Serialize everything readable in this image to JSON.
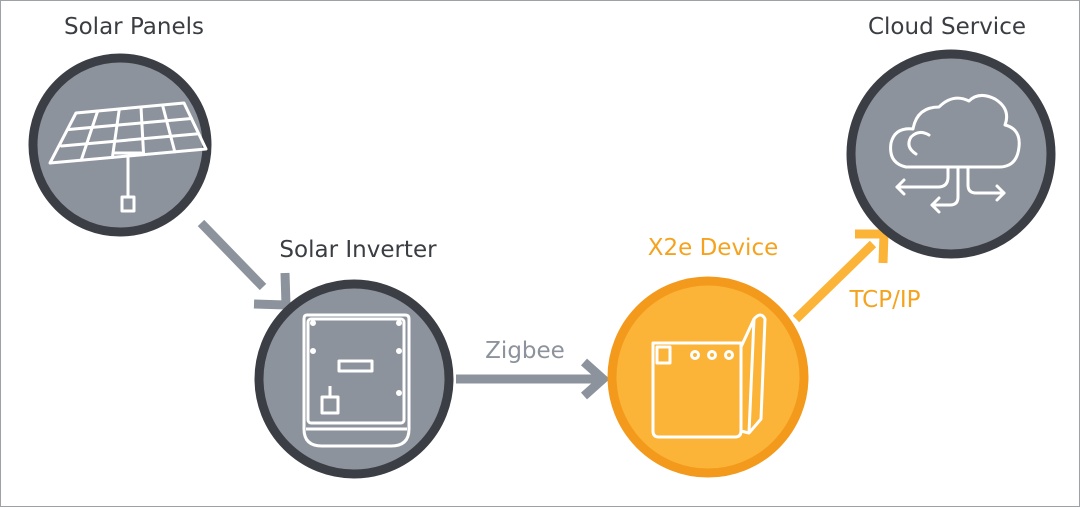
{
  "nodes": {
    "solar_panels": {
      "label": "Solar Panels"
    },
    "solar_inverter": {
      "label": "Solar Inverter"
    },
    "x2e_device": {
      "label": "X2e Device"
    },
    "cloud_service": {
      "label": "Cloud Service"
    }
  },
  "edges": {
    "zigbee": {
      "label": "Zigbee"
    },
    "tcp_ip": {
      "label": "TCP/IP"
    }
  },
  "colors": {
    "node_fill": "#8d939c",
    "node_border": "#3b3e44",
    "device_fill": "#fbb437",
    "device_border": "#f39a1c",
    "arrow_gray": "#8d939c",
    "arrow_orange": "#fbb437",
    "text_dark": "#3a3d42",
    "text_gray": "#8d939c",
    "text_orange": "#f5a31f"
  }
}
